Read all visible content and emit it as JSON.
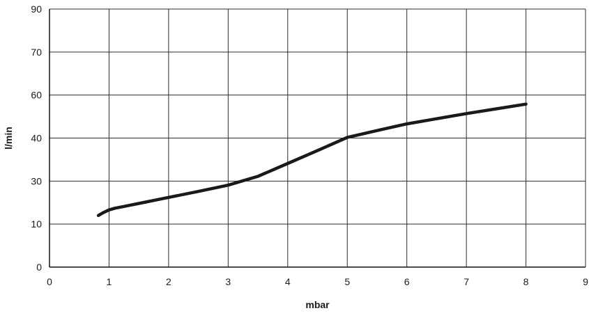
{
  "chart_data": {
    "type": "line",
    "xlabel": "mbar",
    "ylabel": "l/min",
    "xlim": [
      0,
      9
    ],
    "x_ticks": [
      0,
      1,
      2,
      3,
      4,
      5,
      6,
      7,
      8,
      9
    ],
    "y_tick_labels": [
      "0",
      "10",
      "30",
      "40",
      "60",
      "70",
      "90"
    ],
    "grid": true,
    "series": [
      {
        "color": "#1a1a1a",
        "x": [
          0.82,
          0.9,
          1.0,
          1.1,
          1.25,
          1.5,
          2.0,
          2.5,
          3.0,
          3.5,
          4.0,
          4.5,
          5.0,
          5.5,
          6.0,
          6.5,
          7.0,
          7.5,
          8.0
        ],
        "y": [
          14,
          15.3,
          16.6,
          17.4,
          18.2,
          19.6,
          22.4,
          25.2,
          28.1,
          31.1,
          34.1,
          37.1,
          40.3,
          43.5,
          46.6,
          49.0,
          51.4,
          53.6,
          55.8
        ]
      }
    ]
  }
}
